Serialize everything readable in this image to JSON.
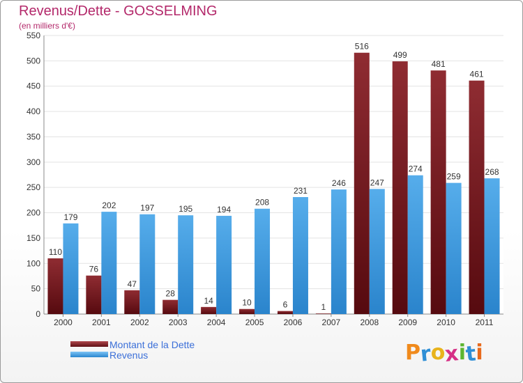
{
  "chart_data": {
    "type": "bar",
    "title": "Revenus/Dette - GOSSELMING",
    "subtitle": "(en milliers d'€)",
    "categories": [
      "2000",
      "2001",
      "2002",
      "2003",
      "2004",
      "2005",
      "2006",
      "2007",
      "2008",
      "2009",
      "2010",
      "2011"
    ],
    "series": [
      {
        "name": "Montant de la Dette",
        "color": "#7a1a1f",
        "values": [
          110,
          76,
          47,
          28,
          14,
          10,
          6,
          1,
          516,
          499,
          481,
          461
        ]
      },
      {
        "name": "Revenus",
        "color": "#3f9ee5",
        "values": [
          179,
          202,
          197,
          195,
          194,
          208,
          231,
          246,
          247,
          274,
          259,
          268
        ]
      }
    ],
    "ylim": [
      0,
      550
    ],
    "yticks": [
      0,
      50,
      100,
      150,
      200,
      250,
      300,
      350,
      400,
      450,
      500,
      550
    ],
    "grid": true,
    "legend_position": "bottom-left"
  },
  "logo": {
    "letters": [
      "P",
      "r",
      "o",
      "x",
      "i",
      "t",
      "i"
    ],
    "colors": [
      "#f08a1c",
      "#2f8fd6",
      "#e8b31c",
      "#d62f86",
      "#5cb531",
      "#2f8fd6",
      "#e86a1c"
    ]
  }
}
